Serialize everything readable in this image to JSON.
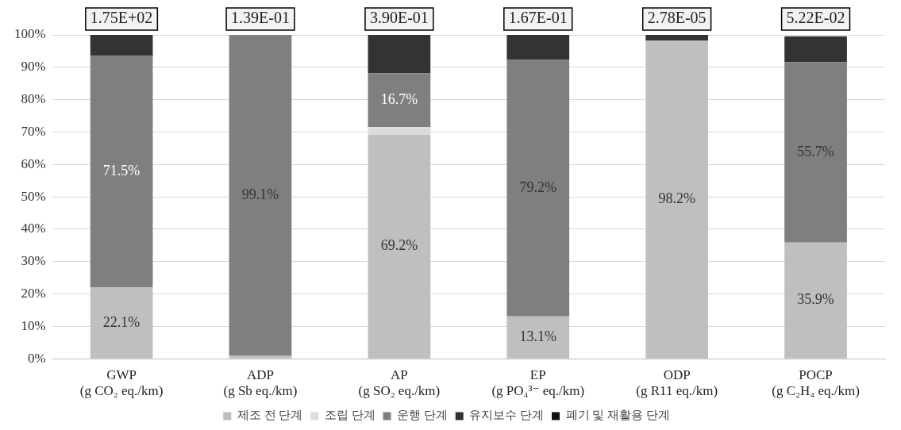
{
  "chart_data": {
    "type": "bar",
    "stacked": true,
    "categories": [
      "GWP\n(g CO₂ eq./km)",
      "ADP\n(g Sb eq./km)",
      "AP\n(g SO₂ eq./km)",
      "EP\n(g PO₄³⁻ eq./km)",
      "ODP\n(g R11 eq./km)",
      "POCP\n(g C₂H₄ eq./km)"
    ],
    "series": [
      {
        "name": "제조 전 단계",
        "color": "#bfbfbf",
        "values": [
          22.1,
          0.9,
          69.2,
          13.1,
          98.2,
          35.9
        ],
        "value_labels": [
          "22.1%",
          null,
          "69.2%",
          "13.1%",
          "98.2%",
          "35.9%"
        ]
      },
      {
        "name": "조립 단계",
        "color": "#dcdcdc",
        "values": [
          0,
          0,
          2.3,
          0,
          0,
          null
        ]
      },
      {
        "name": "운행 단계",
        "color": "#7f7f7f",
        "values": [
          71.5,
          99.1,
          16.7,
          79.2,
          0,
          55.7
        ],
        "value_labels": [
          "71.5%",
          "99.1%",
          "16.7%",
          "79.2%",
          null,
          "55.7%"
        ]
      },
      {
        "name": "유지보수 단계",
        "color": "#333333",
        "values": [
          6.4,
          0,
          11.8,
          7.7,
          1.8,
          8.0
        ]
      },
      {
        "name": "폐기 및 재활용 단계",
        "color": "#111111",
        "values": [
          0,
          0,
          0,
          0,
          0,
          0
        ]
      }
    ],
    "annotations": [
      {
        "text": "1.75E+02",
        "x": "GWP\n(g CO₂ eq./km)",
        "y": 100
      },
      {
        "text": "1.39E-01",
        "x": "ADP\n(g Sb eq./km)",
        "y": 100
      },
      {
        "text": "3.90E-01",
        "x": "AP\n(g SO₂ eq./km)",
        "y": 100
      },
      {
        "text": "1.67E-01",
        "x": "EP\n(g PO₄³⁻ eq./km)",
        "y": 100
      },
      {
        "text": "2.78E-05",
        "x": "ODP\n(g R11 eq./km)",
        "y": 100
      },
      {
        "text": "5.22E-02",
        "x": "POCP\n(g C₂H₄ eq./km)",
        "y": 100
      }
    ],
    "ylim": [
      0,
      100
    ],
    "yticks": [
      {
        "value": 0,
        "label": "0%"
      },
      {
        "value": 10,
        "label": "10%"
      },
      {
        "value": 20,
        "label": "20%"
      },
      {
        "value": 30,
        "label": "30%"
      },
      {
        "value": 40,
        "label": "40%"
      },
      {
        "value": 50,
        "label": "50%"
      },
      {
        "value": 60,
        "label": "60%"
      },
      {
        "value": 70,
        "label": "70%"
      },
      {
        "value": 80,
        "label": "80%"
      },
      {
        "value": 90,
        "label": "90%"
      },
      {
        "value": 100,
        "label": "100%"
      }
    ],
    "grid": "y",
    "legend": "bottom"
  }
}
